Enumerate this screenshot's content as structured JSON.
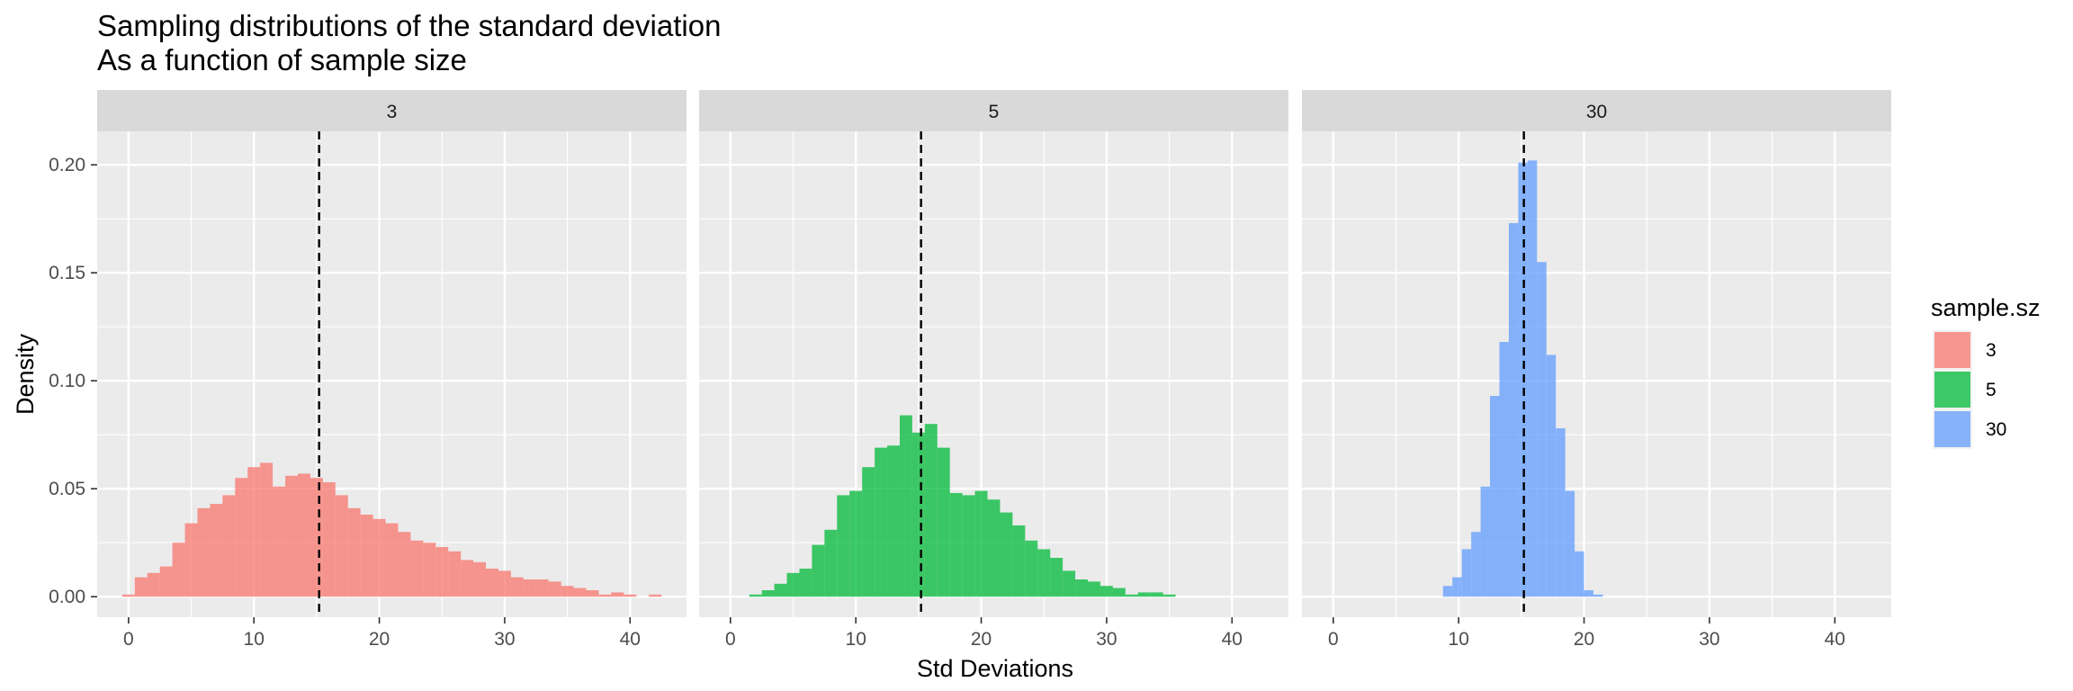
{
  "chart_data": {
    "type": "histogram",
    "title": "Sampling distributions of the standard deviation",
    "subtitle": "As a function of sample size",
    "xlabel": "Std Deviations",
    "ylabel": "Density",
    "xlim": [
      -2.5,
      44.5
    ],
    "ylim": [
      -0.0095,
      0.2155
    ],
    "x_ticks": [
      "0",
      "10",
      "20",
      "30",
      "40"
    ],
    "x_tick_values": [
      0,
      10,
      20,
      30,
      40
    ],
    "y_ticks": [
      "0.00",
      "0.05",
      "0.10",
      "0.15",
      "0.20"
    ],
    "y_tick_values": [
      0,
      0.05,
      0.1,
      0.15,
      0.2
    ],
    "bin_width": 1,
    "reference_line": {
      "value": 15.2,
      "style": "dashed"
    },
    "grid": true,
    "legend": {
      "title": "sample.sz",
      "position": "right"
    },
    "panels": [
      {
        "label": "3",
        "color": "#F8766D",
        "bin_starts": [
          -0.5,
          0.5,
          1.5,
          2.5,
          3.5,
          4.5,
          5.5,
          6.5,
          7.5,
          8.5,
          9.5,
          10.5,
          11.5,
          12.5,
          13.5,
          14.5,
          15.5,
          16.5,
          17.5,
          18.5,
          19.5,
          20.5,
          21.5,
          22.5,
          23.5,
          24.5,
          25.5,
          26.5,
          27.5,
          28.5,
          29.5,
          30.5,
          31.5,
          32.5,
          33.5,
          34.5,
          35.5,
          36.5,
          37.5,
          38.5,
          39.5,
          40.5,
          41.5
        ],
        "density": [
          0.001,
          0.009,
          0.011,
          0.014,
          0.025,
          0.034,
          0.041,
          0.043,
          0.047,
          0.055,
          0.06,
          0.062,
          0.051,
          0.056,
          0.057,
          0.055,
          0.053,
          0.047,
          0.041,
          0.038,
          0.036,
          0.034,
          0.03,
          0.026,
          0.025,
          0.023,
          0.021,
          0.017,
          0.016,
          0.013,
          0.012,
          0.009,
          0.008,
          0.008,
          0.007,
          0.005,
          0.004,
          0.003,
          0.001,
          0.002,
          0.001,
          0,
          0.001
        ]
      },
      {
        "label": "5",
        "color": "#00BA38",
        "bin_starts": [
          1.5,
          2.5,
          3.5,
          4.5,
          5.5,
          6.5,
          7.5,
          8.5,
          9.5,
          10.5,
          11.5,
          12.5,
          13.5,
          14.5,
          15.5,
          16.5,
          17.5,
          18.5,
          19.5,
          20.5,
          21.5,
          22.5,
          23.5,
          24.5,
          25.5,
          26.5,
          27.5,
          28.5,
          29.5,
          30.5,
          31.5,
          32.5,
          33.5,
          34.5
        ],
        "density": [
          0.001,
          0.003,
          0.006,
          0.011,
          0.013,
          0.024,
          0.031,
          0.047,
          0.049,
          0.06,
          0.069,
          0.07,
          0.084,
          0.076,
          0.08,
          0.069,
          0.048,
          0.047,
          0.049,
          0.045,
          0.039,
          0.033,
          0.026,
          0.022,
          0.018,
          0.012,
          0.008,
          0.007,
          0.005,
          0.004,
          0.001,
          0.002,
          0.002,
          0.001
        ]
      },
      {
        "label": "30",
        "color": "#619CFF",
        "bin_starts": [
          8.75,
          9.5,
          10.25,
          11.0,
          11.75,
          12.5,
          13.25,
          14.0,
          14.75,
          15.5,
          16.25,
          17.0,
          17.75,
          18.5,
          19.25,
          20.0,
          20.75
        ],
        "density": [
          0.005,
          0.009,
          0.022,
          0.03,
          0.051,
          0.093,
          0.118,
          0.173,
          0.201,
          0.202,
          0.155,
          0.112,
          0.078,
          0.049,
          0.021,
          0.003,
          0.001
        ]
      }
    ]
  }
}
